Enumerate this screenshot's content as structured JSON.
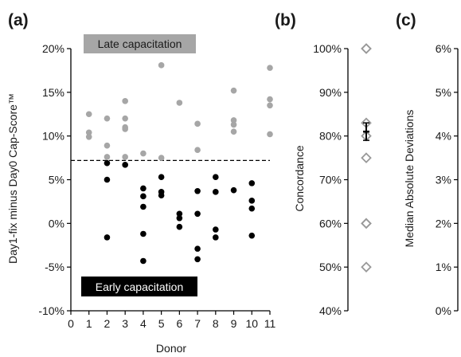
{
  "chart_data": [
    {
      "panel": "(a)",
      "type": "scatter",
      "xlabel": "Donor",
      "ylabel": "Day1-fix  minus Day0 Cap-Score™",
      "xlim": [
        0,
        11
      ],
      "ylim": [
        -10,
        20
      ],
      "x_ticks": [
        "0",
        "1",
        "2",
        "3",
        "4",
        "5",
        "6",
        "7",
        "8",
        "9",
        "10",
        "11"
      ],
      "y_ticks": [
        "-10%",
        "-5%",
        "0%",
        "5%",
        "10%",
        "15%",
        "20%"
      ],
      "threshold": 7.2,
      "annotations": {
        "late": "Late capacitation",
        "early": "Early capacitation"
      },
      "series": [
        {
          "color": "#a6a6a6",
          "points": [
            [
              1,
              12.5
            ],
            [
              1,
              10.4
            ],
            [
              1,
              9.9
            ],
            [
              2,
              12.0
            ],
            [
              2,
              8.9
            ],
            [
              2,
              7.6
            ],
            [
              3,
              14.0
            ],
            [
              3,
              12.0
            ],
            [
              3,
              11.0
            ],
            [
              3,
              10.8
            ],
            [
              3,
              7.6
            ],
            [
              4,
              8.0
            ],
            [
              5,
              18.1
            ],
            [
              5,
              7.5
            ],
            [
              6,
              13.8
            ],
            [
              7,
              11.4
            ],
            [
              7,
              8.4
            ],
            [
              9,
              15.2
            ],
            [
              9,
              11.8
            ],
            [
              9,
              11.3
            ],
            [
              9,
              10.5
            ],
            [
              11,
              17.8
            ],
            [
              11,
              14.2
            ],
            [
              11,
              13.5
            ],
            [
              11,
              10.2
            ]
          ]
        },
        {
          "color": "#000000",
          "points": [
            [
              2,
              6.9
            ],
            [
              2,
              5.0
            ],
            [
              2,
              -1.6
            ],
            [
              3,
              6.7
            ],
            [
              4,
              4.0
            ],
            [
              4,
              3.1
            ],
            [
              4,
              1.9
            ],
            [
              4,
              -1.2
            ],
            [
              4,
              -4.3
            ],
            [
              5,
              5.3
            ],
            [
              5,
              3.6
            ],
            [
              5,
              3.2
            ],
            [
              6,
              1.1
            ],
            [
              6,
              0.6
            ],
            [
              6,
              -0.4
            ],
            [
              7,
              3.7
            ],
            [
              7,
              1.1
            ],
            [
              7,
              -2.9
            ],
            [
              7,
              -4.1
            ],
            [
              8,
              5.3
            ],
            [
              8,
              3.6
            ],
            [
              8,
              -0.7
            ],
            [
              8,
              -1.6
            ],
            [
              9,
              3.8
            ],
            [
              10,
              4.6
            ],
            [
              10,
              2.6
            ],
            [
              10,
              1.7
            ],
            [
              10,
              -1.4
            ]
          ]
        }
      ]
    },
    {
      "panel": "(b)",
      "type": "scatter",
      "ylabel": "Concordance",
      "ylim": [
        40,
        100
      ],
      "y_ticks": [
        "40%",
        "50%",
        "60%",
        "70%",
        "80%",
        "90%",
        "100%"
      ],
      "values": [
        100,
        100,
        83,
        80,
        75,
        60,
        60,
        50
      ],
      "mean": 81,
      "error": 2
    },
    {
      "panel": "(c)",
      "type": "scatter",
      "ylabel": "Median Absolute Deviations",
      "ylim": [
        0,
        6
      ],
      "y_ticks": [
        "0%",
        "1%",
        "2%",
        "3%",
        "4%",
        "5%",
        "6%"
      ]
    }
  ]
}
